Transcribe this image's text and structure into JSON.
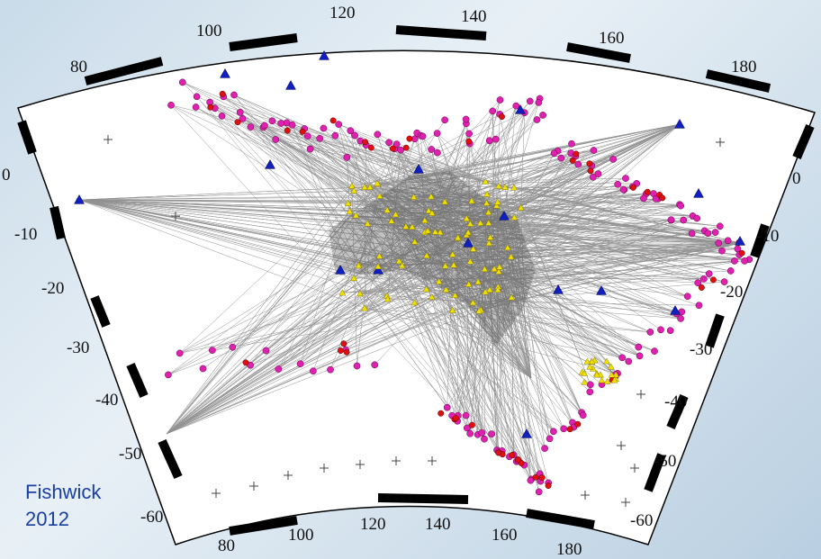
{
  "credit": {
    "line1": "Fishwick",
    "line2": "2012"
  },
  "longitude_ticks_top": [
    "80",
    "100",
    "120",
    "140",
    "160",
    "180"
  ],
  "longitude_ticks_bottom": [
    "80",
    "100",
    "120",
    "140",
    "160",
    "180"
  ],
  "latitude_ticks_left": [
    "0",
    "-10",
    "-20",
    "-30",
    "-40",
    "-50",
    "-60"
  ],
  "latitude_ticks_right": [
    "0",
    "-10",
    "-20",
    "-30",
    "-40",
    "-50",
    "-60"
  ],
  "map": {
    "extent_lon": [
      70,
      190
    ],
    "extent_lat": [
      10,
      -65
    ]
  },
  "colors": {
    "ray_paths": "#3a3a3a",
    "event_magenta": "#e020b0",
    "event_red": "#e01010",
    "station_blue": "#1020c0",
    "station_yellow": "#f0e000",
    "frame": "#000000"
  },
  "legend_markers": [
    "magenta-circle-events",
    "red-circle-events",
    "blue-triangle-stations",
    "yellow-triangle-stations"
  ]
}
